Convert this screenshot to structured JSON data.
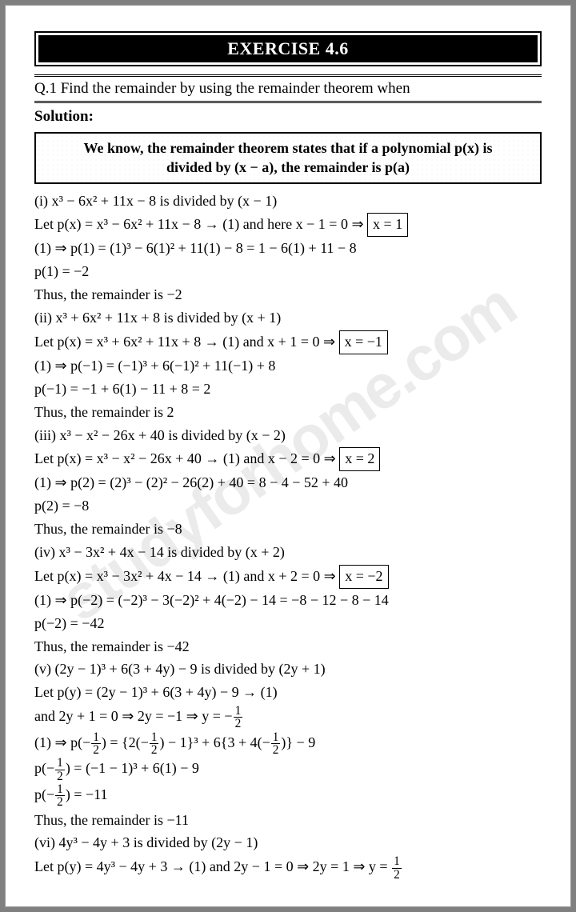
{
  "watermark": "studyforhome.com",
  "banner": "EXERCISE 4.6",
  "question": "Q.1 Find the remainder by using the remainder theorem when",
  "solution_label": "Solution:",
  "theorem_box_l1": "We know, the remainder theorem states that if a polynomial p(x) is",
  "theorem_box_l2": "divided by (x − a), the remainder is p(a)",
  "lines": {
    "l1": "(i) x³ − 6x² + 11x − 8 is divided by (x − 1)",
    "l2a": "Let p(x) = x³ − 6x² + 11x − 8 → (1) and here x − 1 = 0 ⇒ ",
    "l2box": "x = 1",
    "l3": "(1) ⇒ p(1) = (1)³ − 6(1)² + 11(1) − 8 = 1 − 6(1) + 11 − 8",
    "l4": "p(1) = −2",
    "l5": "Thus, the remainder is −2",
    "l6": "(ii) x³ + 6x² + 11x + 8 is divided by (x + 1)",
    "l7a": "Let p(x) = x³ + 6x² + 11x + 8 → (1) and x + 1 = 0 ⇒ ",
    "l7box": "x = −1",
    "l8": "(1) ⇒ p(−1) = (−1)³ + 6(−1)² + 11(−1) + 8",
    "l9": "p(−1) = −1 + 6(1) − 11 + 8 = 2",
    "l10": "Thus, the remainder is 2",
    "l11": "(iii) x³ − x² − 26x + 40 is divided by (x − 2)",
    "l12a": "Let p(x) = x³ − x² − 26x + 40 → (1) and x − 2 = 0 ⇒ ",
    "l12box": "x = 2",
    "l13": "(1) ⇒ p(2) = (2)³ − (2)² − 26(2) + 40 = 8 − 4 − 52 + 40",
    "l14": "p(2) = −8",
    "l15": "Thus, the remainder is −8",
    "l16": "(iv) x³ − 3x² + 4x − 14 is divided by (x + 2)",
    "l17a": "Let p(x) = x³ − 3x² + 4x − 14 → (1) and x + 2 = 0 ⇒ ",
    "l17box": "x = −2",
    "l18": "(1) ⇒ p(−2) = (−2)³ − 3(−2)² + 4(−2) − 14 = −8 − 12 − 8 − 14",
    "l19": "p(−2) = −42",
    "l20": "Thus, the remainder is −42",
    "l21": "(v) (2y − 1)³ + 6(3 + 4y) − 9 is divided by (2y + 1)",
    "l22": "Let p(y) = (2y − 1)³ + 6(3 + 4y) − 9 → (1)",
    "l23a": "and 2y + 1 = 0 ⇒ 2y = −1 ⇒ y = −",
    "l24a": "(1) ⇒ p(−",
    "l24b": ") = {2(−",
    "l24c": ") − 1}³ + 6{3 + 4(−",
    "l24d": ")} − 9",
    "l25a": "p(−",
    "l25b": ") = (−1 − 1)³ + 6(1) − 9",
    "l26a": "p(−",
    "l26b": ") = −11",
    "l27": "Thus, the remainder is −11",
    "l28": "(vi) 4y³ − 4y + 3 is divided by (2y − 1)",
    "l29a": "Let p(y) = 4y³ − 4y + 3 → (1) and 2y − 1 = 0 ⇒ 2y = 1 ⇒ y = "
  },
  "frac_half": {
    "n": "1",
    "d": "2"
  }
}
